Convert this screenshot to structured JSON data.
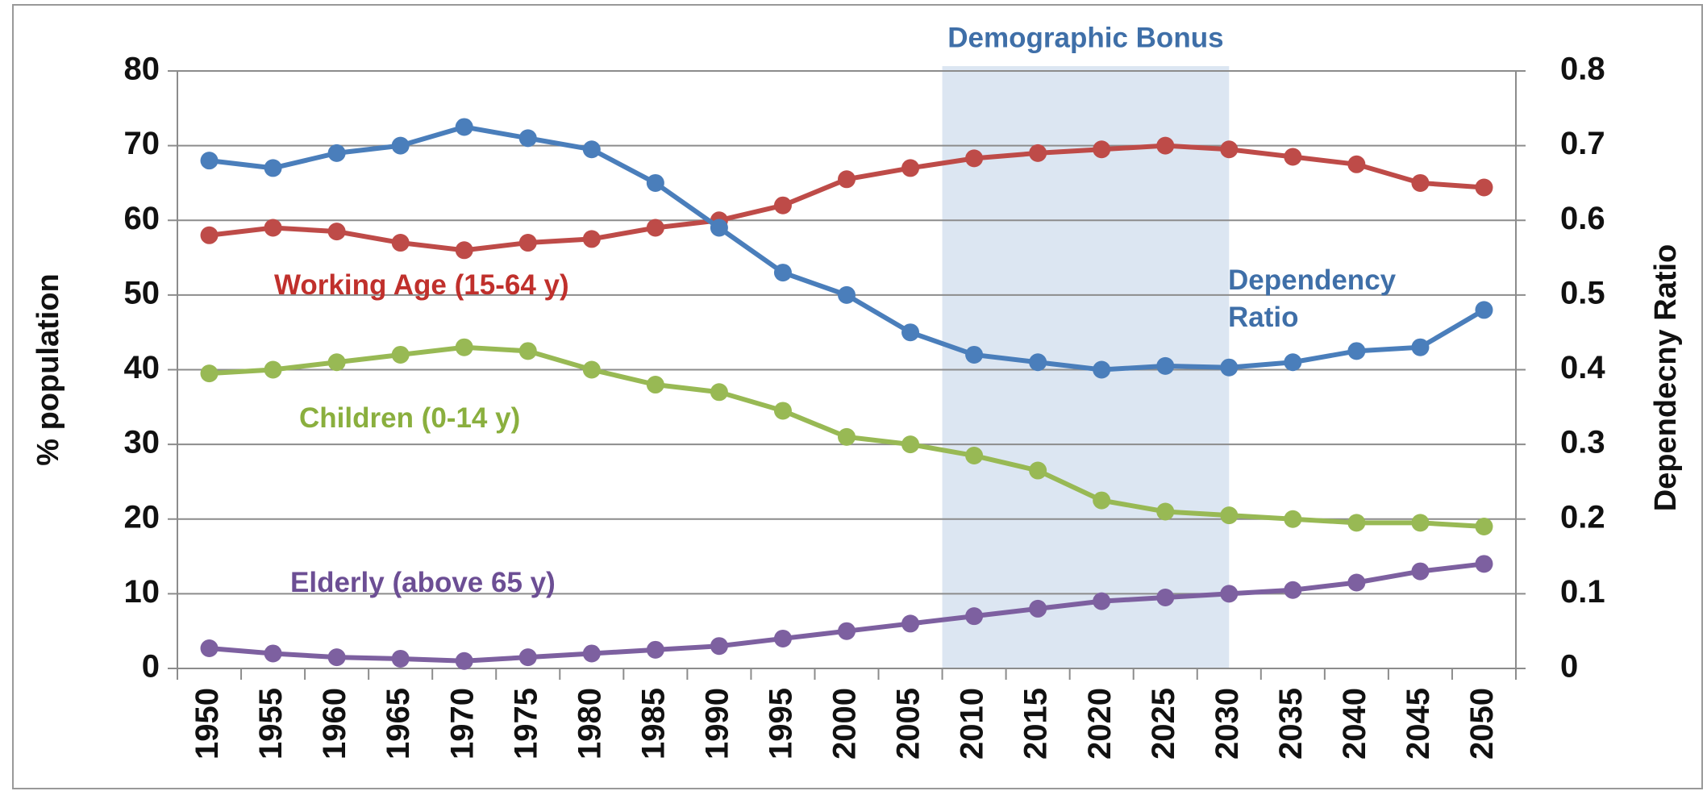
{
  "chart_data": {
    "type": "line",
    "categories": [
      "1950",
      "1955",
      "1960",
      "1965",
      "1970",
      "1975",
      "1980",
      "1985",
      "1990",
      "1995",
      "2000",
      "2005",
      "2010",
      "2015",
      "2020",
      "2025",
      "2030",
      "2035",
      "2040",
      "2045",
      "2050"
    ],
    "y_label": "% population",
    "y2_label": "Dependecny Ratio",
    "ylim": [
      0,
      80
    ],
    "yticks": [
      0,
      10,
      20,
      30,
      40,
      50,
      60,
      70,
      80
    ],
    "y2lim": [
      0,
      0.8
    ],
    "y2ticks": [
      0,
      0.1,
      0.2,
      0.3,
      0.4,
      0.5,
      0.6,
      0.7,
      0.8
    ],
    "grid": true,
    "shade": {
      "label": "Demographic Bonus",
      "from": "2010",
      "to": "2030",
      "color": "#dce6f2"
    },
    "series": [
      {
        "name": "Working Age (15-64 y)",
        "color": "#be4b48",
        "values": [
          58,
          59,
          58.5,
          57,
          56,
          57,
          57.5,
          59,
          60,
          62,
          65.5,
          67,
          68.3,
          69,
          69.5,
          70,
          69.5,
          68.5,
          67.5,
          65,
          64.4
        ]
      },
      {
        "name": "Children (0-14 y)",
        "color": "#98b954",
        "values": [
          39.5,
          40,
          41,
          42,
          43,
          42.5,
          40,
          38,
          37,
          34.5,
          31,
          30,
          28.5,
          26.5,
          22.5,
          21,
          20.5,
          20,
          19.5,
          19.5,
          19
        ]
      },
      {
        "name": "Elderly (above 65 y)",
        "color": "#7d60a0",
        "values": [
          2.7,
          2,
          1.5,
          1.3,
          1,
          1.5,
          2,
          2.5,
          3,
          4,
          5,
          6,
          7,
          8,
          9,
          9.5,
          10,
          10.5,
          11.5,
          13,
          14
        ]
      },
      {
        "name": "Dependency Ratio",
        "color": "#4a7ebb",
        "axis": "y2",
        "values": [
          0.68,
          0.67,
          0.69,
          0.7,
          0.725,
          0.71,
          0.695,
          0.65,
          0.59,
          0.53,
          0.5,
          0.45,
          0.42,
          0.41,
          0.4,
          0.405,
          0.403,
          0.41,
          0.425,
          0.43,
          0.48
        ]
      }
    ]
  }
}
